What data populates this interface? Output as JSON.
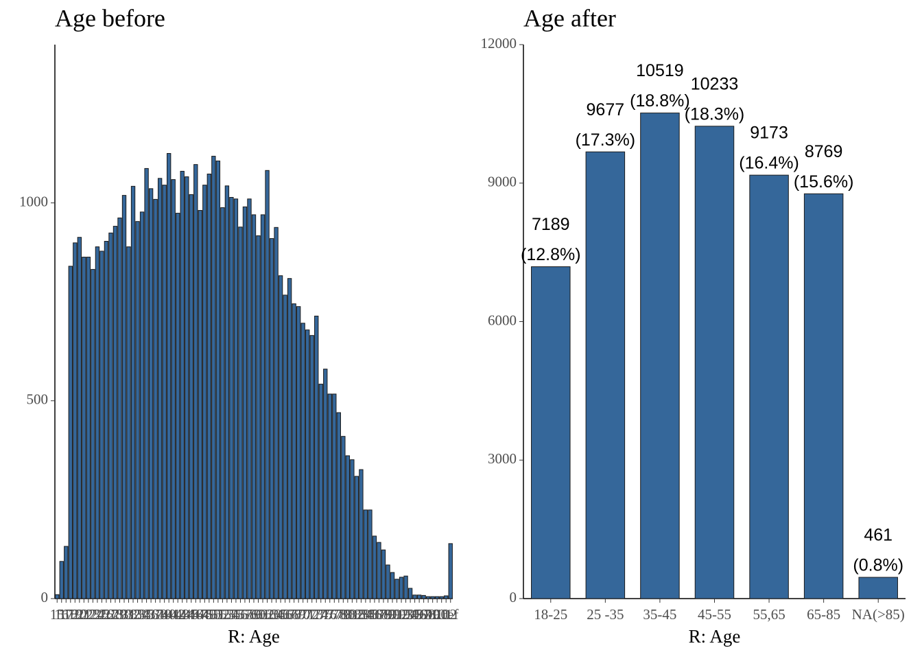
{
  "chart_data": [
    {
      "type": "bar",
      "title": "Age before",
      "x_label": "R: Age",
      "categories": [
        "15",
        "16",
        "17",
        "18",
        "19",
        "20",
        "21",
        "22",
        "23",
        "24",
        "25",
        "26",
        "27",
        "28",
        "29",
        "30",
        "31",
        "32",
        "33",
        "34",
        "35",
        "36",
        "37",
        "38",
        "39",
        "40",
        "41",
        "42",
        "43",
        "44",
        "45",
        "46",
        "47",
        "48",
        "49",
        "50",
        "51",
        "52",
        "53",
        "54",
        "55",
        "56",
        "57",
        "58",
        "59",
        "60",
        "61",
        "62",
        "63",
        "64",
        "65",
        "66",
        "67",
        "68",
        "69",
        "70",
        "71",
        "72",
        "73",
        "74",
        "75",
        "76",
        "77",
        "78",
        "79",
        "80",
        "81",
        "82",
        "83",
        "84",
        "85",
        "86",
        "87",
        "88",
        "89",
        "90",
        "91",
        "92",
        "93",
        "94",
        "95",
        "96",
        "97",
        "98",
        "99",
        "100",
        "101",
        "102",
        "ref"
      ],
      "values": [
        10,
        94,
        132,
        840,
        899,
        913,
        863,
        863,
        832,
        889,
        878,
        903,
        924,
        941,
        962,
        1019,
        889,
        1042,
        953,
        977,
        1087,
        1036,
        1009,
        1062,
        1045,
        1125,
        1059,
        974,
        1080,
        1066,
        1021,
        1097,
        981,
        1045,
        1073,
        1118,
        1106,
        988,
        1043,
        1014,
        1010,
        939,
        990,
        1010,
        970,
        917,
        970,
        1082,
        910,
        938,
        816,
        767,
        809,
        745,
        738,
        696,
        679,
        665,
        714,
        542,
        580,
        517,
        517,
        470,
        410,
        361,
        351,
        309,
        326,
        224,
        224,
        158,
        142,
        123,
        85,
        66,
        49,
        54,
        57,
        26,
        9,
        9,
        8,
        5,
        5,
        5,
        5,
        7,
        139
      ],
      "color": "#35679a",
      "ylim": [
        0,
        1400
      ],
      "yticks": [
        0,
        500,
        1000
      ]
    },
    {
      "type": "bar",
      "title": "Age after",
      "x_label": "R: Age",
      "categories": [
        "18-25",
        "25 -35",
        "35-45",
        "45-55",
        "55,65",
        "65-85",
        "NA(>85)"
      ],
      "values": [
        7189,
        9677,
        10519,
        10233,
        9173,
        8769,
        461
      ],
      "percent_labels": [
        "(12.8%)",
        "(17.3%)",
        "(18.8%)",
        "(18.3%)",
        "(16.4%)",
        "(15.6%)",
        "(0.8%)"
      ],
      "color": "#35679a",
      "ylim": [
        0,
        12000
      ],
      "yticks": [
        0,
        3000,
        6000,
        9000,
        12000
      ]
    }
  ]
}
